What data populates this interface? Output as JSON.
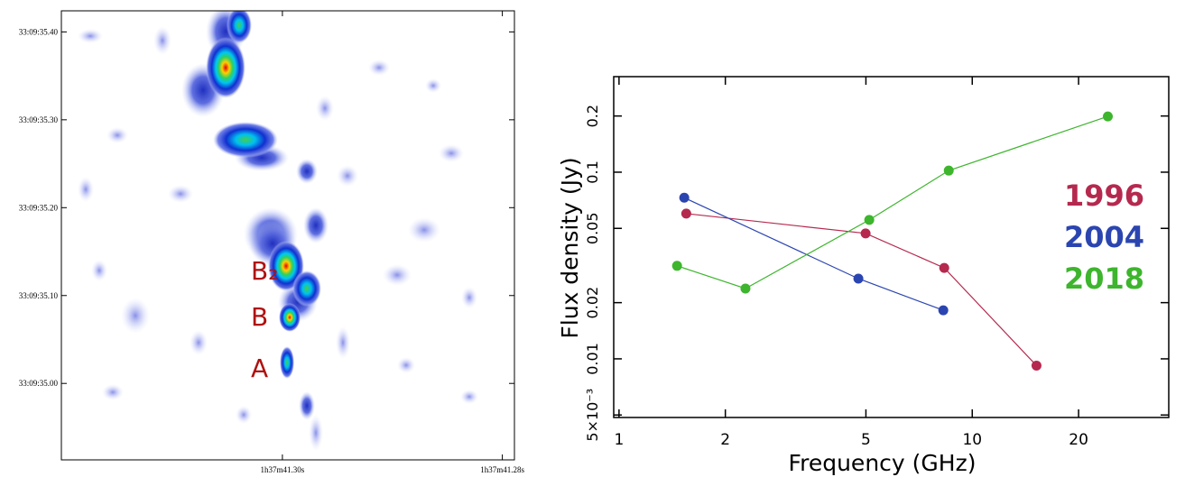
{
  "chart_data": [
    {
      "type": "image",
      "xlim": [
        41.3201,
        41.2789
      ],
      "ylim": [
        34.913,
        35.424
      ],
      "xticks": [
        {
          "value": 41.3,
          "label": "1h37m41.30s"
        },
        {
          "value": 41.28,
          "label": "1h37m41.28s"
        }
      ],
      "yticks": [
        {
          "value": 35.4,
          "label": "33:09:35.40"
        },
        {
          "value": 35.3,
          "label": "33:09:35.30"
        },
        {
          "value": 35.2,
          "label": "33:09:35.20"
        },
        {
          "value": 35.1,
          "label": "33:09:35.10"
        },
        {
          "value": 35.0,
          "label": "33:09:35.00"
        }
      ],
      "annotations": [
        "B₂",
        "B",
        "A"
      ],
      "annotation_color": "#b01010"
    },
    {
      "type": "line",
      "log_x": true,
      "log_y": true,
      "xlabel": "Frequency (GHz)",
      "ylabel": "Flux density (Jy)",
      "xlim": [
        0.966,
        36
      ],
      "ylim": [
        0.00485,
        0.325
      ],
      "xticks": [
        1,
        2,
        5,
        10,
        20
      ],
      "yticks": [
        {
          "value": 0.005,
          "label": "5×10⁻³"
        },
        0.01,
        0.02,
        0.05,
        0.1,
        0.2
      ],
      "legend": "right",
      "series": [
        {
          "name": "1996",
          "color": "#b5294e",
          "x": [
            1.55,
            4.99,
            8.33,
            15.2
          ],
          "values": [
            0.06,
            0.047,
            0.0307,
            0.0092
          ]
        },
        {
          "name": "2004",
          "color": "#2b45b0",
          "x": [
            1.53,
            4.76,
            8.28
          ],
          "values": [
            0.073,
            0.0269,
            0.0182
          ]
        },
        {
          "name": "2018",
          "color": "#3db52d",
          "x": [
            1.46,
            2.28,
            5.11,
            8.58,
            24.2
          ],
          "values": [
            0.0315,
            0.0238,
            0.0555,
            0.102,
            0.199
          ]
        }
      ]
    }
  ]
}
